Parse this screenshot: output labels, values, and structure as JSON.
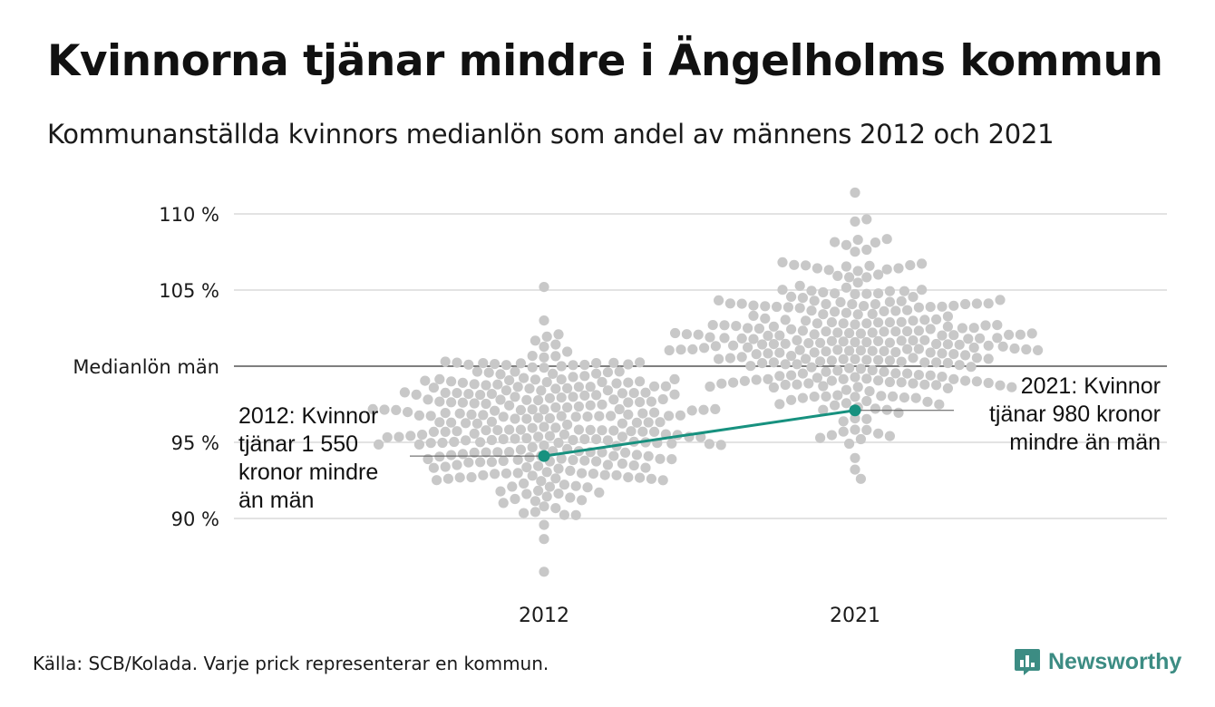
{
  "title": "Kvinnorna tjänar mindre i Ängelholms kommun",
  "subtitle": "Kommunanställda kvinnors medianlön som andel av männens 2012 och 2021",
  "source": "Källa: SCB/Kolada. Varje prick representerar en kommun.",
  "logo": {
    "text": "Newsworthy",
    "color": "#3c8c83",
    "icon": "bar-chart-bubble-icon"
  },
  "chart_data": {
    "type": "scatter",
    "categories": [
      "2012",
      "2021"
    ],
    "y_ticks": [
      {
        "value": 90,
        "label": "90 %"
      },
      {
        "value": 95,
        "label": "95 %"
      },
      {
        "value": 100,
        "label": "Medianlön män"
      },
      {
        "value": 105,
        "label": "105 %"
      },
      {
        "value": 110,
        "label": "110 %"
      }
    ],
    "ylim": [
      86,
      112
    ],
    "grid": true,
    "colors": {
      "points": "#c8c8c8",
      "highlight": "#17917f",
      "grid": "#e3e3e3",
      "reference": "#333333"
    },
    "distributions": [
      {
        "category": "2012",
        "min": 86.5,
        "max": 105.2,
        "center": 96.0,
        "spread": 2.8,
        "count": 290
      },
      {
        "category": "2021",
        "min": 92.6,
        "max": 111.4,
        "center": 101.6,
        "spread": 2.9,
        "count": 290
      }
    ],
    "highlight": {
      "name": "Ängelholm",
      "values": [
        {
          "category": "2012",
          "value": 94.1
        },
        {
          "category": "2021",
          "value": 97.1
        }
      ]
    },
    "annotations": [
      {
        "category": "2012",
        "lines": [
          "2012: Kvinnor",
          "tjänar 1 550",
          "kronor mindre",
          "än män"
        ]
      },
      {
        "category": "2021",
        "lines": [
          "2021: Kvinnor",
          "tjänar 980 kronor",
          "mindre än män"
        ]
      }
    ]
  }
}
